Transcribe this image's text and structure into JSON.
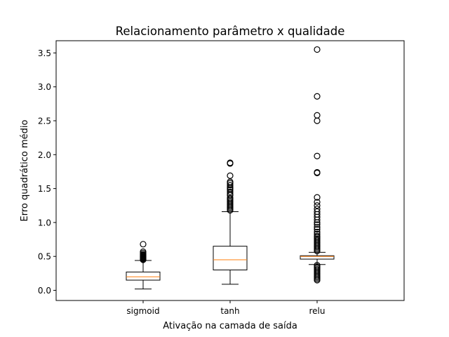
{
  "chart_data": {
    "type": "box",
    "title": "Relacionamento parâmetro x qualidade",
    "xlabel": "Ativação na camada de saída",
    "ylabel": "Erro quadrático médio",
    "ylim": [
      -0.15,
      3.68
    ],
    "yticks": [
      "0.0",
      "0.5",
      "1.0",
      "1.5",
      "2.0",
      "2.5",
      "3.0",
      "3.5"
    ],
    "grid": false,
    "categories": [
      "sigmoid",
      "tanh",
      "relu"
    ],
    "boxes": [
      {
        "name": "sigmoid",
        "whisker_low": 0.02,
        "q1": 0.15,
        "median": 0.2,
        "q3": 0.27,
        "whisker_high": 0.44,
        "outliers": [
          0.45,
          0.46,
          0.47,
          0.48,
          0.49,
          0.5,
          0.51,
          0.52,
          0.53,
          0.55,
          0.57,
          0.68
        ]
      },
      {
        "name": "tanh",
        "whisker_low": 0.09,
        "q1": 0.3,
        "median": 0.45,
        "q3": 0.65,
        "whisker_high": 1.16,
        "outliers": [
          1.18,
          1.2,
          1.22,
          1.24,
          1.26,
          1.28,
          1.3,
          1.32,
          1.34,
          1.36,
          1.4,
          1.42,
          1.45,
          1.48,
          1.5,
          1.52,
          1.55,
          1.58,
          1.6,
          1.69,
          1.87,
          1.88
        ]
      },
      {
        "name": "relu",
        "whisker_low": 0.38,
        "q1": 0.46,
        "median": 0.5,
        "q3": 0.51,
        "whisker_high": 0.56,
        "outliers": [
          0.15,
          0.17,
          0.19,
          0.21,
          0.23,
          0.25,
          0.27,
          0.29,
          0.31,
          0.33,
          0.35,
          0.37,
          0.58,
          0.6,
          0.62,
          0.64,
          0.66,
          0.68,
          0.7,
          0.72,
          0.74,
          0.76,
          0.78,
          0.8,
          0.83,
          0.86,
          0.9,
          0.93,
          0.97,
          1.0,
          1.04,
          1.08,
          1.12,
          1.16,
          1.2,
          1.25,
          1.3,
          1.37,
          1.73,
          1.74,
          1.98,
          2.5,
          2.58,
          2.86,
          3.55
        ]
      }
    ],
    "colors": {
      "box": "#000000",
      "median": "#ff7f0e",
      "outlier": "#000000"
    }
  }
}
